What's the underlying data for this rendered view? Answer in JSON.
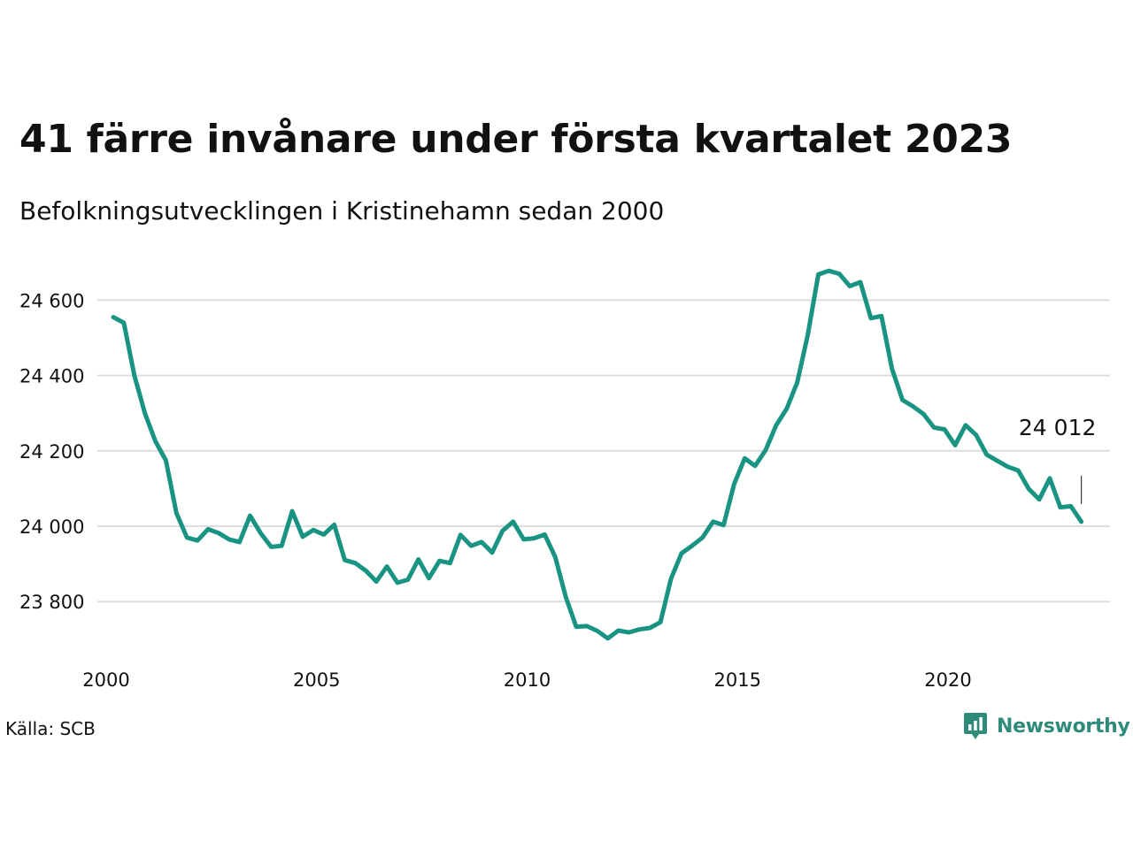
{
  "header": {
    "title": "41 färre invånare under första kvartalet 2023",
    "subtitle": "Befolkningsutvecklingen i Kristinehamn sedan 2000"
  },
  "footer": {
    "source": "Källa: SCB",
    "brand": "Newsworthy"
  },
  "colors": {
    "line": "#1a9482",
    "grid": "#dddddd",
    "brand": "#2e8b7a"
  },
  "chart_data": {
    "type": "line",
    "title": "41 färre invånare under första kvartalet 2023",
    "subtitle": "Befolkningsutvecklingen i Kristinehamn sedan 2000",
    "xlabel": "",
    "ylabel": "",
    "xlim": [
      2000,
      2024.5
    ],
    "ylim": [
      23690,
      24700
    ],
    "x_ticks": [
      2000,
      2005,
      2010,
      2015,
      2020
    ],
    "x_tick_labels": [
      "2000",
      "2005",
      "2010",
      "2015",
      "2020"
    ],
    "y_ticks": [
      23800,
      24000,
      24200,
      24400,
      24600
    ],
    "y_tick_labels": [
      "23 800",
      "24 000",
      "24 200",
      "24 400",
      "24 600"
    ],
    "grid": "horizontal",
    "legend": "none",
    "annotation": {
      "text": "24 012",
      "x": 2023.0,
      "y": 24012
    },
    "series": [
      {
        "x_start": 2000.0,
        "x_step": 0.25,
        "values": [
          24555,
          24540,
          24400,
          24300,
          24225,
          24175,
          24035,
          23970,
          23962,
          23992,
          23982,
          23965,
          23958,
          24028,
          23982,
          23945,
          23948,
          24040,
          23972,
          23990,
          23978,
          24004,
          23910,
          23902,
          23882,
          23853,
          23893,
          23850,
          23858,
          23912,
          23862,
          23908,
          23902,
          23977,
          23948,
          23958,
          23930,
          23988,
          24012,
          23965,
          23968,
          23978,
          23918,
          23812,
          23733,
          23735,
          23722,
          23702,
          23723,
          23718,
          23726,
          23730,
          23745,
          23860,
          23928,
          23948,
          23970,
          24012,
          24003,
          24112,
          24180,
          24160,
          24202,
          24268,
          24312,
          24382,
          24508,
          24668,
          24678,
          24670,
          24637,
          24648,
          24552,
          24558,
          24418,
          24335,
          24318,
          24298,
          24262,
          24257,
          24215,
          24268,
          24242,
          24190,
          24174,
          24158,
          24148,
          24099,
          24071,
          24127,
          24050,
          24053,
          24012
        ]
      }
    ]
  }
}
